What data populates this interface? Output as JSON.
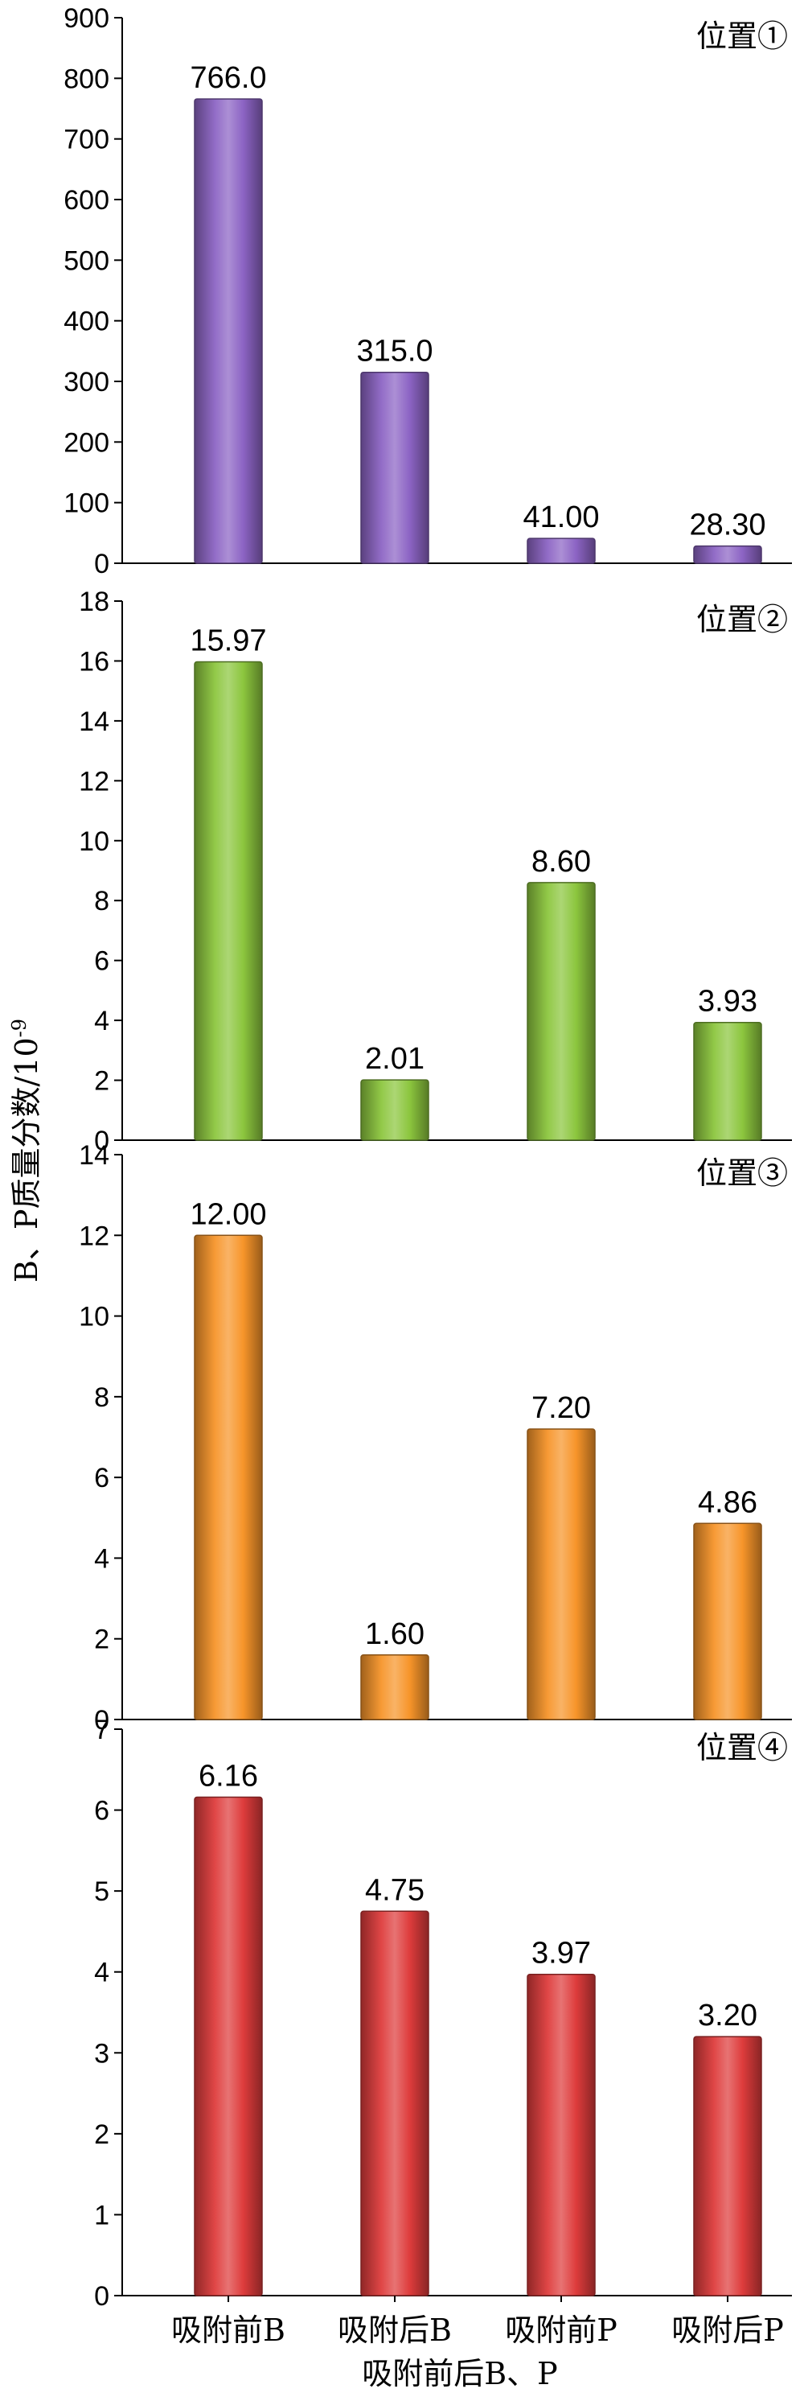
{
  "chart_data": {
    "type": "bar",
    "categories": [
      "吸附前B",
      "吸附后B",
      "吸附前P",
      "吸附后P"
    ],
    "xlabel": "吸附前后B、P",
    "ylabel": "B、P质量分数/10",
    "ylabel_sup": "-9",
    "panels": [
      {
        "label": "位置①",
        "values": [
          766.0,
          315.0,
          41.0,
          28.3
        ],
        "value_labels": [
          "766.0",
          "315.0",
          "41.00",
          "28.30"
        ],
        "ylim": [
          0,
          900
        ],
        "ticks": [
          0,
          100,
          200,
          300,
          400,
          500,
          600,
          700,
          800,
          900
        ],
        "color": "#8c64c4"
      },
      {
        "label": "位置②",
        "values": [
          15.97,
          2.01,
          8.6,
          3.93
        ],
        "value_labels": [
          "15.97",
          "2.01",
          "8.60",
          "3.93"
        ],
        "ylim": [
          0,
          18
        ],
        "ticks": [
          0,
          2,
          4,
          6,
          8,
          10,
          12,
          14,
          16,
          18
        ],
        "color": "#8cc63e"
      },
      {
        "label": "位置③",
        "values": [
          12.0,
          1.6,
          7.2,
          4.86
        ],
        "value_labels": [
          "12.00",
          "1.60",
          "7.20",
          "4.86"
        ],
        "ylim": [
          0,
          14
        ],
        "ticks": [
          0,
          2,
          4,
          6,
          8,
          10,
          12,
          14
        ],
        "color": "#f7952a"
      },
      {
        "label": "位置④",
        "values": [
          6.16,
          4.75,
          3.97,
          3.2
        ],
        "value_labels": [
          "6.16",
          "4.75",
          "3.97",
          "3.20"
        ],
        "ylim": [
          0,
          7
        ],
        "ticks": [
          0,
          1,
          2,
          3,
          4,
          5,
          6,
          7
        ],
        "color": "#de3c3c"
      }
    ]
  }
}
